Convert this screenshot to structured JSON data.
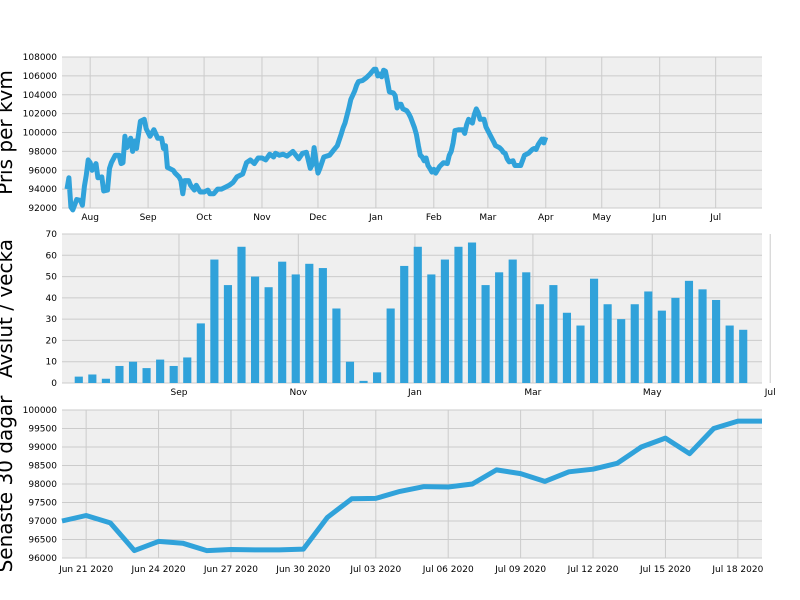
{
  "style": {
    "line_color": "#30a2da",
    "bar_color": "#30a2da",
    "plot_bg": "#efefef",
    "grid_color": "#cbcbcb"
  },
  "chart_data": [
    {
      "type": "line",
      "ylabel": "Pris per kvm",
      "xlabel": "",
      "ylim": [
        92000,
        108000
      ],
      "yticks": [
        92000,
        94000,
        96000,
        98000,
        100000,
        102000,
        104000,
        106000,
        108000
      ],
      "xlim": [
        0,
        360
      ],
      "xticks": [
        {
          "x": 12,
          "label": "Aug"
        },
        {
          "x": 42,
          "label": "Sep"
        },
        {
          "x": 71,
          "label": "Oct"
        },
        {
          "x": 101,
          "label": "Nov"
        },
        {
          "x": 130,
          "label": "Dec"
        },
        {
          "x": 160,
          "label": "Jan"
        },
        {
          "x": 190,
          "label": "Feb"
        },
        {
          "x": 218,
          "label": "Mar"
        },
        {
          "x": 248,
          "label": "Apr"
        },
        {
          "x": 277,
          "label": "May"
        },
        {
          "x": 307,
          "label": "Jun"
        },
        {
          "x": 336,
          "label": "Jul"
        }
      ],
      "grid": true,
      "series": [
        {
          "points": [
            [
              0,
              94000
            ],
            [
              1,
              95200
            ],
            [
              2,
              92100
            ],
            [
              3,
              91800
            ],
            [
              5,
              92900
            ],
            [
              7,
              92800
            ],
            [
              8,
              92300
            ],
            [
              9,
              94300
            ],
            [
              10,
              95500
            ],
            [
              11,
              97100
            ],
            [
              12,
              96800
            ],
            [
              13,
              96000
            ],
            [
              15,
              96700
            ],
            [
              16,
              95200
            ],
            [
              18,
              95300
            ],
            [
              19,
              93800
            ],
            [
              21,
              93900
            ],
            [
              22,
              96200
            ],
            [
              23,
              96800
            ],
            [
              25,
              97600
            ],
            [
              27,
              97600
            ],
            [
              28,
              96700
            ],
            [
              29,
              96800
            ],
            [
              30,
              99600
            ],
            [
              31,
              98400
            ],
            [
              32,
              98900
            ],
            [
              33,
              99400
            ],
            [
              34,
              98000
            ],
            [
              35,
              99100
            ],
            [
              36,
              98300
            ],
            [
              38,
              101200
            ],
            [
              40,
              101400
            ],
            [
              41,
              100400
            ],
            [
              43,
              99600
            ],
            [
              45,
              100300
            ],
            [
              47,
              99400
            ],
            [
              49,
              99400
            ],
            [
              50,
              98300
            ],
            [
              51,
              98600
            ],
            [
              52,
              96300
            ],
            [
              55,
              96000
            ],
            [
              56,
              95700
            ],
            [
              58,
              95300
            ],
            [
              59,
              94900
            ],
            [
              60,
              93500
            ],
            [
              61,
              94900
            ],
            [
              63,
              94900
            ],
            [
              64,
              94400
            ],
            [
              66,
              93900
            ],
            [
              67,
              94400
            ],
            [
              69,
              93700
            ],
            [
              71,
              93700
            ],
            [
              73,
              93900
            ],
            [
              74,
              93500
            ],
            [
              76,
              93500
            ],
            [
              78,
              94000
            ],
            [
              80,
              94000
            ],
            [
              82,
              94200
            ],
            [
              84,
              94400
            ],
            [
              86,
              94700
            ],
            [
              88,
              95300
            ],
            [
              91,
              95600
            ],
            [
              93,
              96800
            ],
            [
              95,
              97100
            ],
            [
              97,
              96700
            ],
            [
              99,
              97300
            ],
            [
              101,
              97300
            ],
            [
              103,
              97100
            ],
            [
              105,
              97700
            ],
            [
              107,
              97400
            ],
            [
              108,
              97800
            ],
            [
              110,
              97600
            ],
            [
              112,
              97700
            ],
            [
              114,
              97500
            ],
            [
              117,
              98000
            ],
            [
              120,
              97200
            ],
            [
              122,
              97800
            ],
            [
              124,
              97900
            ],
            [
              126,
              96200
            ],
            [
              127,
              96600
            ],
            [
              128,
              98400
            ],
            [
              129,
              97000
            ],
            [
              130,
              95700
            ],
            [
              131,
              96200
            ],
            [
              133,
              97400
            ],
            [
              136,
              97600
            ],
            [
              138,
              98100
            ],
            [
              140,
              98600
            ],
            [
              142,
              99800
            ],
            [
              143,
              100500
            ],
            [
              144,
              101000
            ],
            [
              146,
              102600
            ],
            [
              147,
              103500
            ],
            [
              149,
              104400
            ],
            [
              150,
              105000
            ],
            [
              151,
              105400
            ],
            [
              153,
              105500
            ],
            [
              155,
              105800
            ],
            [
              157,
              106200
            ],
            [
              159,
              106700
            ],
            [
              160,
              106700
            ],
            [
              161,
              106000
            ],
            [
              162,
              106200
            ],
            [
              163,
              105900
            ],
            [
              164,
              106600
            ],
            [
              165,
              106500
            ],
            [
              166,
              105400
            ],
            [
              167,
              104300
            ],
            [
              169,
              104200
            ],
            [
              170,
              103900
            ],
            [
              171,
              102600
            ],
            [
              172,
              103000
            ],
            [
              173,
              103000
            ],
            [
              174,
              102500
            ],
            [
              176,
              102300
            ],
            [
              177,
              102000
            ],
            [
              178,
              101600
            ],
            [
              180,
              100500
            ],
            [
              181,
              99800
            ],
            [
              182,
              98600
            ],
            [
              183,
              97600
            ],
            [
              184,
              97400
            ],
            [
              185,
              97000
            ],
            [
              186,
              97300
            ],
            [
              187,
              96500
            ],
            [
              188,
              96200
            ],
            [
              189,
              95800
            ],
            [
              190,
              96100
            ],
            [
              191,
              95700
            ],
            [
              193,
              96400
            ],
            [
              195,
              96800
            ],
            [
              197,
              96700
            ],
            [
              198,
              97600
            ],
            [
              199,
              98000
            ],
            [
              200,
              98900
            ],
            [
              201,
              100200
            ],
            [
              203,
              100300
            ],
            [
              205,
              100300
            ],
            [
              206,
              99900
            ],
            [
              207,
              100800
            ],
            [
              208,
              101400
            ],
            [
              209,
              101200
            ],
            [
              210,
              101000
            ],
            [
              211,
              101900
            ],
            [
              212,
              102500
            ],
            [
              213,
              102100
            ],
            [
              214,
              101400
            ],
            [
              216,
              101400
            ],
            [
              217,
              100600
            ],
            [
              219,
              99800
            ],
            [
              221,
              99000
            ],
            [
              222,
              98600
            ],
            [
              224,
              98400
            ],
            [
              225,
              98200
            ],
            [
              226,
              97900
            ],
            [
              227,
              97800
            ],
            [
              228,
              97200
            ],
            [
              229,
              96900
            ],
            [
              231,
              97000
            ],
            [
              232,
              96500
            ],
            [
              235,
              96500
            ],
            [
              237,
              97600
            ],
            [
              239,
              97800
            ],
            [
              241,
              98200
            ],
            [
              242,
              98300
            ],
            [
              243,
              98200
            ],
            [
              244,
              98700
            ],
            [
              245,
              99000
            ],
            [
              246,
              99300
            ],
            [
              247,
              98900
            ],
            [
              248,
              99500
            ]
          ]
        }
      ]
    },
    {
      "type": "bar",
      "ylabel": "Avslut / vecka",
      "xlabel": "",
      "ylim": [
        0,
        70
      ],
      "yticks": [
        0,
        10,
        20,
        30,
        40,
        50,
        60,
        70
      ],
      "xlim": [
        0,
        50
      ],
      "xticks": [
        {
          "x": 7.3,
          "label": "Sep"
        },
        {
          "x": 16.1,
          "label": "Nov"
        },
        {
          "x": 24.7,
          "label": "Jan"
        },
        {
          "x": 33.4,
          "label": "Mar"
        },
        {
          "x": 42.2,
          "label": "May"
        },
        {
          "x": 50.9,
          "label": "Jul"
        }
      ],
      "grid": true,
      "values": [
        3,
        4,
        2,
        8,
        10,
        7,
        11,
        8,
        12,
        28,
        58,
        46,
        64,
        50,
        45,
        57,
        51,
        56,
        54,
        35,
        10,
        1,
        5,
        35,
        55,
        64,
        51,
        58,
        64,
        66,
        46,
        52,
        58,
        52,
        37,
        46,
        33,
        27,
        49,
        37,
        30,
        37,
        43,
        34,
        40,
        48,
        44,
        39,
        27,
        25
      ]
    },
    {
      "type": "line",
      "ylabel": "Senaste 30 dagar",
      "xlabel": "",
      "ylim": [
        96000,
        100000
      ],
      "yticks": [
        96000,
        96500,
        97000,
        97500,
        98000,
        98500,
        99000,
        99500,
        100000
      ],
      "xlim": [
        "2020-06-20",
        "2020-07-19"
      ],
      "xticks": [
        "Jun 21 2020",
        "Jun 24 2020",
        "Jun 27 2020",
        "Jun 30 2020",
        "Jul 03 2020",
        "Jul 06 2020",
        "Jul 09 2020",
        "Jul 12 2020",
        "Jul 15 2020",
        "Jul 18 2020"
      ],
      "grid": true,
      "series": [
        {
          "x": [
            "2020-06-20",
            "2020-06-21",
            "2020-06-22",
            "2020-06-23",
            "2020-06-24",
            "2020-06-25",
            "2020-06-26",
            "2020-06-27",
            "2020-06-28",
            "2020-06-29",
            "2020-06-30",
            "2020-07-01",
            "2020-07-02",
            "2020-07-03",
            "2020-07-04",
            "2020-07-05",
            "2020-07-06",
            "2020-07-07",
            "2020-07-08",
            "2020-07-09",
            "2020-07-10",
            "2020-07-11",
            "2020-07-12",
            "2020-07-13",
            "2020-07-14",
            "2020-07-15",
            "2020-07-16",
            "2020-07-17",
            "2020-07-18",
            "2020-07-19"
          ],
          "y": [
            97000,
            97150,
            96950,
            96200,
            96450,
            96400,
            96200,
            96230,
            96220,
            96220,
            96240,
            97100,
            97600,
            97610,
            97800,
            97930,
            97920,
            98000,
            98380,
            98280,
            98070,
            98330,
            98400,
            98560,
            99000,
            99240,
            98820,
            99500,
            99700,
            99700
          ]
        }
      ]
    }
  ]
}
